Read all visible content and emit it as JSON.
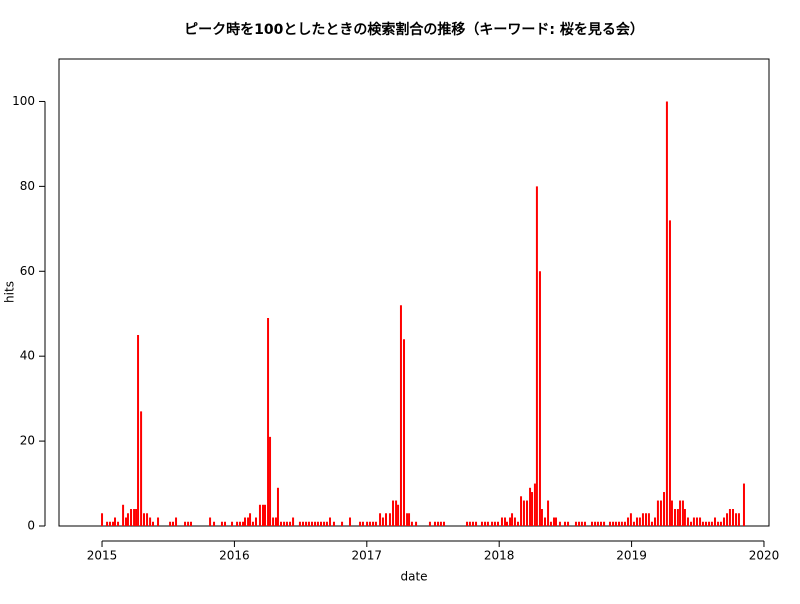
{
  "chart_data": {
    "type": "spike",
    "title": "ピーク時を100としたときの検索割合の推移（キーワード: 桜を見る会）",
    "xlabel": "date",
    "ylabel": "hits",
    "color": "#ff0000",
    "xlim": [
      2014.675,
      2020.038
    ],
    "xticks": [
      2015,
      2016,
      2017,
      2018,
      2019,
      2020
    ],
    "ylim": [
      0,
      110
    ],
    "yticks": [
      0,
      20,
      40,
      60,
      80,
      100
    ],
    "x": [
      2015.0,
      2015.038,
      2015.06,
      2015.083,
      2015.098,
      2015.121,
      2015.159,
      2015.181,
      2015.196,
      2015.219,
      2015.242,
      2015.257,
      2015.272,
      2015.295,
      2015.317,
      2015.34,
      2015.363,
      2015.385,
      2015.423,
      2015.514,
      2015.536,
      2015.559,
      2015.627,
      2015.65,
      2015.672,
      2015.816,
      2015.846,
      2015.906,
      2015.929,
      2015.982,
      2016.02,
      2016.042,
      2016.065,
      2016.08,
      2016.103,
      2016.118,
      2016.14,
      2016.163,
      2016.193,
      2016.216,
      2016.231,
      2016.254,
      2016.269,
      2016.292,
      2016.314,
      2016.329,
      2016.352,
      2016.375,
      2016.397,
      2016.42,
      2016.443,
      2016.495,
      2016.518,
      2016.541,
      2016.563,
      2016.586,
      2016.609,
      2016.631,
      2016.654,
      2016.677,
      2016.699,
      2016.722,
      2016.752,
      2016.813,
      2016.873,
      2016.949,
      2016.971,
      2017.002,
      2017.024,
      2017.047,
      2017.069,
      2017.1,
      2017.122,
      2017.145,
      2017.175,
      2017.198,
      2017.221,
      2017.236,
      2017.258,
      2017.281,
      2017.304,
      2017.319,
      2017.341,
      2017.372,
      2017.477,
      2017.515,
      2017.538,
      2017.56,
      2017.583,
      2017.757,
      2017.779,
      2017.802,
      2017.825,
      2017.87,
      2017.893,
      2017.915,
      2017.946,
      2017.968,
      2017.991,
      2018.021,
      2018.044,
      2018.059,
      2018.082,
      2018.097,
      2018.119,
      2018.142,
      2018.165,
      2018.187,
      2018.21,
      2018.233,
      2018.248,
      2018.27,
      2018.285,
      2018.308,
      2018.323,
      2018.346,
      2018.369,
      2018.391,
      2018.414,
      2018.429,
      2018.459,
      2018.497,
      2018.52,
      2018.58,
      2018.603,
      2018.625,
      2018.648,
      2018.701,
      2018.724,
      2018.746,
      2018.769,
      2018.792,
      2018.837,
      2018.86,
      2018.882,
      2018.905,
      2018.927,
      2018.95,
      2018.973,
      2018.995,
      2019.018,
      2019.041,
      2019.063,
      2019.086,
      2019.109,
      2019.131,
      2019.154,
      2019.177,
      2019.199,
      2019.222,
      2019.245,
      2019.267,
      2019.29,
      2019.305,
      2019.328,
      2019.35,
      2019.366,
      2019.388,
      2019.403,
      2019.426,
      2019.449,
      2019.471,
      2019.494,
      2019.517,
      2019.539,
      2019.562,
      2019.585,
      2019.607,
      2019.63,
      2019.653,
      2019.675,
      2019.698,
      2019.721,
      2019.743,
      2019.766,
      2019.789,
      2019.811,
      2019.849
    ],
    "values": [
      3,
      1,
      1,
      1,
      2,
      1,
      5,
      2,
      3,
      4,
      4,
      4,
      45,
      27,
      3,
      3,
      2,
      1,
      2,
      1,
      1,
      2,
      1,
      1,
      1,
      2,
      1,
      1,
      1,
      1,
      1,
      1,
      1,
      2,
      2,
      3,
      1,
      2,
      5,
      5,
      5,
      49,
      21,
      2,
      2,
      9,
      1,
      1,
      1,
      1,
      2,
      1,
      1,
      1,
      1,
      1,
      1,
      1,
      1,
      1,
      1,
      2,
      1,
      1,
      2,
      1,
      1,
      1,
      1,
      1,
      1,
      3,
      2,
      3,
      3,
      6,
      6,
      5,
      52,
      44,
      3,
      3,
      1,
      1,
      1,
      1,
      1,
      1,
      1,
      1,
      1,
      1,
      1,
      1,
      1,
      1,
      1,
      1,
      1,
      2,
      2,
      1,
      2,
      3,
      2,
      1,
      7,
      6,
      6,
      9,
      8,
      10,
      80,
      60,
      4,
      2,
      6,
      1,
      2,
      2,
      1,
      1,
      1,
      1,
      1,
      1,
      1,
      1,
      1,
      1,
      1,
      1,
      1,
      1,
      1,
      1,
      1,
      1,
      2,
      3,
      1,
      2,
      2,
      3,
      3,
      3,
      1,
      2,
      6,
      6,
      8,
      100,
      72,
      6,
      4,
      4,
      6,
      6,
      4,
      2,
      1,
      2,
      2,
      2,
      1,
      1,
      1,
      1,
      2,
      1,
      1,
      2,
      3,
      4,
      4,
      3,
      3,
      10
    ]
  }
}
